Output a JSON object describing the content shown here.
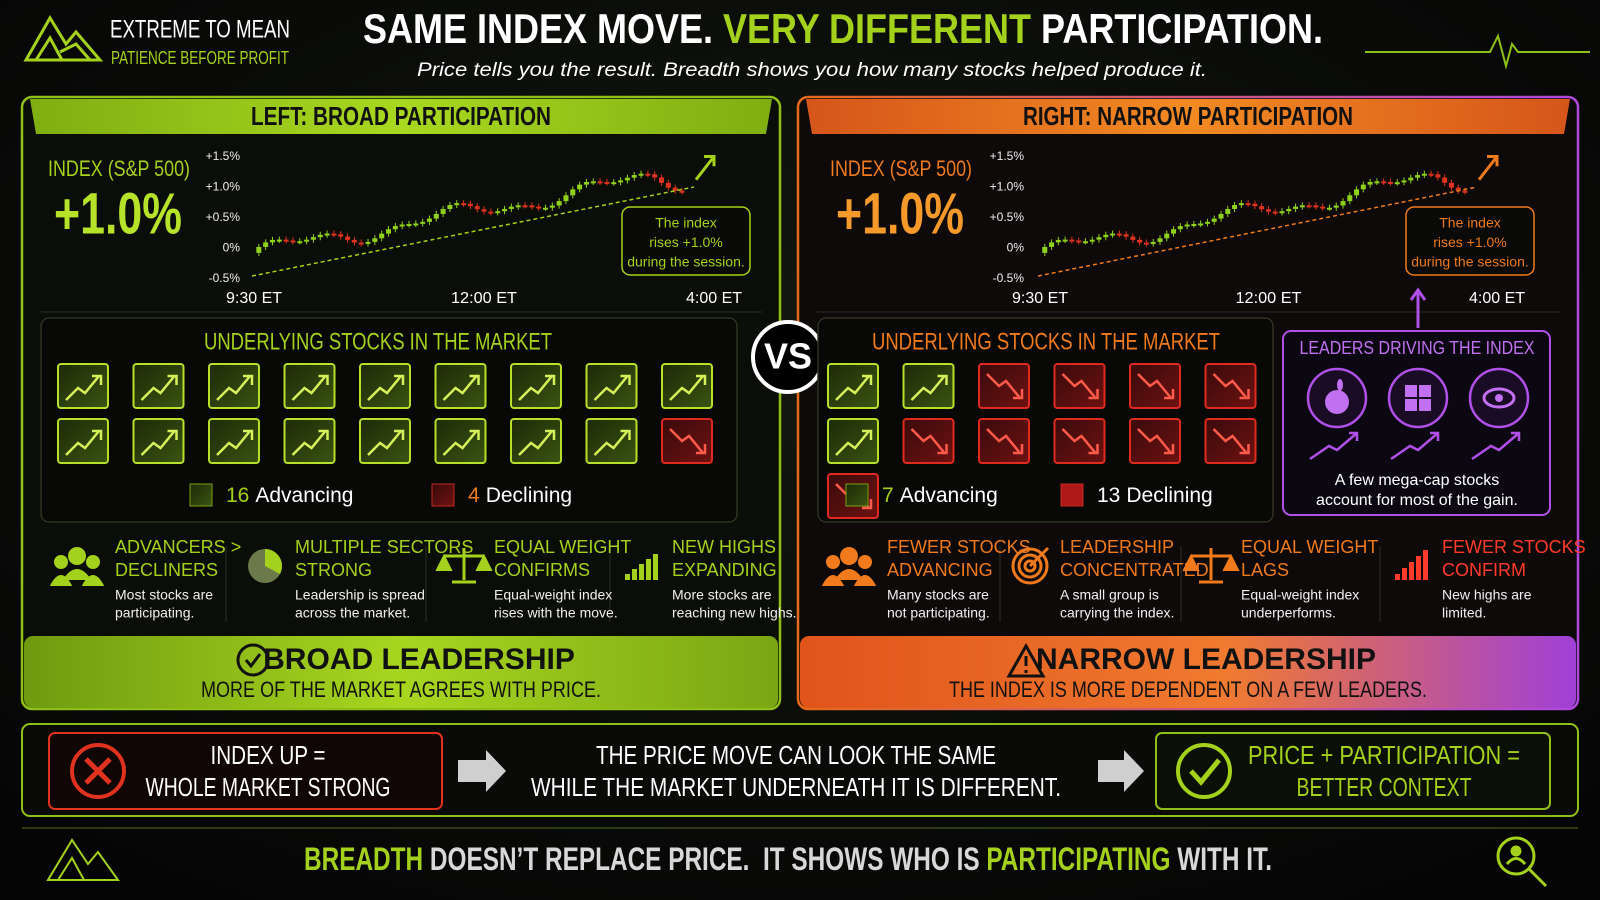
{
  "brand": {
    "name": "EXTREME TO MEAN",
    "tagline": "PATIENCE BEFORE PROFIT"
  },
  "header": {
    "title_parts": [
      "SAME INDEX MOVE. ",
      "VERY DIFFERENT",
      " PARTICIPATION."
    ],
    "subtitle": "Price tells you the result. Breadth shows you how many stocks helped produce it."
  },
  "vs": "VS",
  "panels": [
    {
      "heading": "LEFT: BROAD PARTICIPATION",
      "index_label": "INDEX (S&P 500)",
      "index_value": "+1.0%",
      "y_labels": [
        "+1.5%",
        "+1.0%",
        "+0.5%",
        "0%",
        "-0.5%"
      ],
      "x_labels": [
        "9:30 ET",
        "12:00 ET",
        "4:00 ET"
      ],
      "callout": [
        "The index",
        "rises +1.0%",
        "during the session."
      ],
      "stocks_heading": "UNDERLYING STOCKS IN THE MARKET",
      "advancing": {
        "count": "16",
        "label": "Advancing"
      },
      "declining": {
        "count": "4",
        "label": "Declining"
      },
      "signals": [
        {
          "title": [
            "ADVANCERS >",
            "DECLINERS"
          ],
          "text": [
            "Most stocks are",
            "participating."
          ]
        },
        {
          "title": [
            "MULTIPLE SECTORS",
            "STRONG"
          ],
          "text": [
            "Leadership is spread",
            "across the market."
          ]
        },
        {
          "title": [
            "EQUAL WEIGHT",
            "CONFIRMS"
          ],
          "text": [
            "Equal-weight index",
            "rises with the move."
          ]
        },
        {
          "title": [
            "NEW HIGHS",
            "EXPANDING"
          ],
          "text": [
            "More stocks are",
            "reaching new highs."
          ]
        }
      ],
      "verdict": {
        "title": "BROAD LEADERSHIP",
        "text": "MORE OF THE MARKET AGREES WITH PRICE."
      }
    },
    {
      "heading": "RIGHT: NARROW PARTICIPATION",
      "index_label": "INDEX (S&P 500)",
      "index_value": "+1.0%",
      "y_labels": [
        "+1.5%",
        "+1.0%",
        "+0.5%",
        "0%",
        "-0.5%"
      ],
      "x_labels": [
        "9:30 ET",
        "12:00 ET",
        "4:00 ET"
      ],
      "callout": [
        "The index",
        "rises +1.0%",
        "during the session."
      ],
      "stocks_heading": "UNDERLYING STOCKS IN THE MARKET",
      "advancing": {
        "count": "7",
        "label": "Advancing"
      },
      "declining": {
        "count": "13",
        "label": "Declining"
      },
      "leaders": {
        "title": "LEADERS DRIVING THE INDEX",
        "text": [
          "A few mega-cap stocks",
          "account for most of the gain."
        ]
      },
      "signals": [
        {
          "title": [
            "FEWER STOCKS",
            "ADVANCING"
          ],
          "text": [
            "Many stocks are",
            "not participating."
          ]
        },
        {
          "title": [
            "LEADERSHIP",
            "CONCENTRATED"
          ],
          "text": [
            "A small group is",
            "carrying the index."
          ]
        },
        {
          "title": [
            "EQUAL WEIGHT",
            "LAGS"
          ],
          "text": [
            "Equal-weight index",
            "underperforms."
          ]
        },
        {
          "title": [
            "FEWER STOCKS",
            "CONFIRM"
          ],
          "text": [
            "New highs are",
            "limited."
          ]
        }
      ],
      "verdict": {
        "title": "NARROW LEADERSHIP",
        "text": "THE INDEX IS MORE DEPENDENT ON A FEW LEADERS."
      }
    }
  ],
  "summary": {
    "wrong": [
      "INDEX UP =",
      "WHOLE MARKET STRONG"
    ],
    "middle": [
      "THE PRICE MOVE CAN LOOK THE SAME",
      "WHILE THE MARKET UNDERNEATH IT IS DIFFERENT."
    ],
    "right": [
      "PRICE + PARTICIPATION =",
      "BETTER CONTEXT"
    ]
  },
  "footer": [
    "BREADTH",
    " DOESN’T REPLACE PRICE.  IT SHOWS WHO IS ",
    "PARTICIPATING",
    " WITH IT."
  ]
}
